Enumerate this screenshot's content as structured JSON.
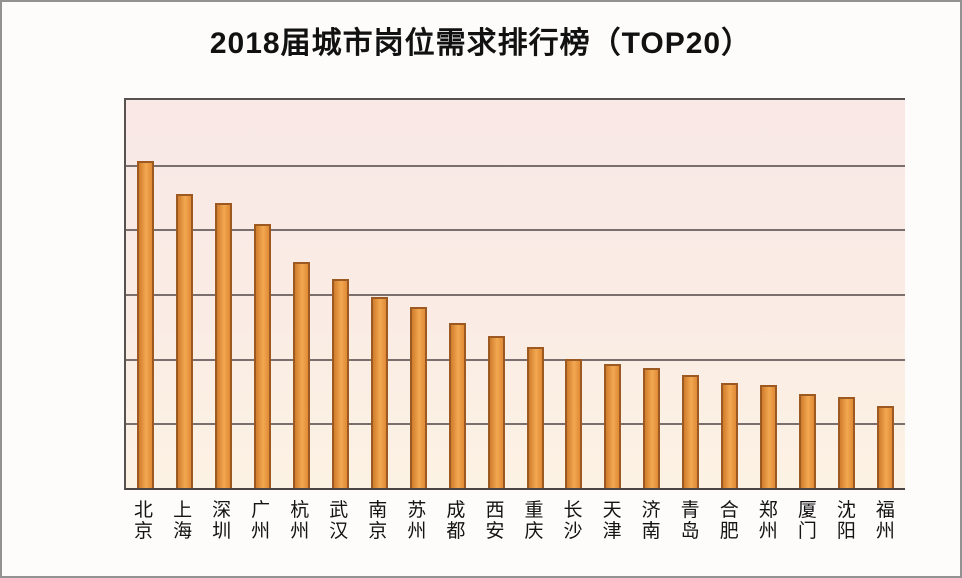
{
  "page": {
    "background": "#fdfcfb",
    "frame_border_color": "#929292"
  },
  "chart_data": {
    "type": "bar",
    "title": "2018届城市岗位需求排行榜（TOP20）",
    "categories": [
      "北京",
      "上海",
      "深圳",
      "广州",
      "杭州",
      "武汉",
      "南京",
      "苏州",
      "成都",
      "西安",
      "重庆",
      "长沙",
      "天津",
      "济南",
      "青岛",
      "合肥",
      "郑州",
      "厦门",
      "沈阳",
      "福州"
    ],
    "values": [
      101000,
      91000,
      88000,
      81500,
      70000,
      64500,
      59000,
      56000,
      51000,
      47000,
      43500,
      40000,
      38500,
      37000,
      35000,
      32500,
      32000,
      29000,
      28000,
      25500
    ],
    "xlabel": "",
    "ylabel": "",
    "ylim": [
      0,
      120000
    ],
    "ytick_labels": [
      "0",
      "20000",
      "40000",
      "60000",
      "80000",
      "100000",
      "120000"
    ],
    "grid": "horizontal",
    "legend": "none",
    "colors": {
      "bar_fill": "#e99742",
      "bar_fill_light": "#f2a851",
      "bar_fill_dark": "#d07d2c",
      "bar_border": "#9c5a22",
      "plot_bg_top": "#f9e8e6",
      "plot_bg_bottom": "#fcf2e3",
      "grid_color": "#7a6f6d",
      "axis_color": "#575150",
      "text_color": "#141414"
    }
  }
}
